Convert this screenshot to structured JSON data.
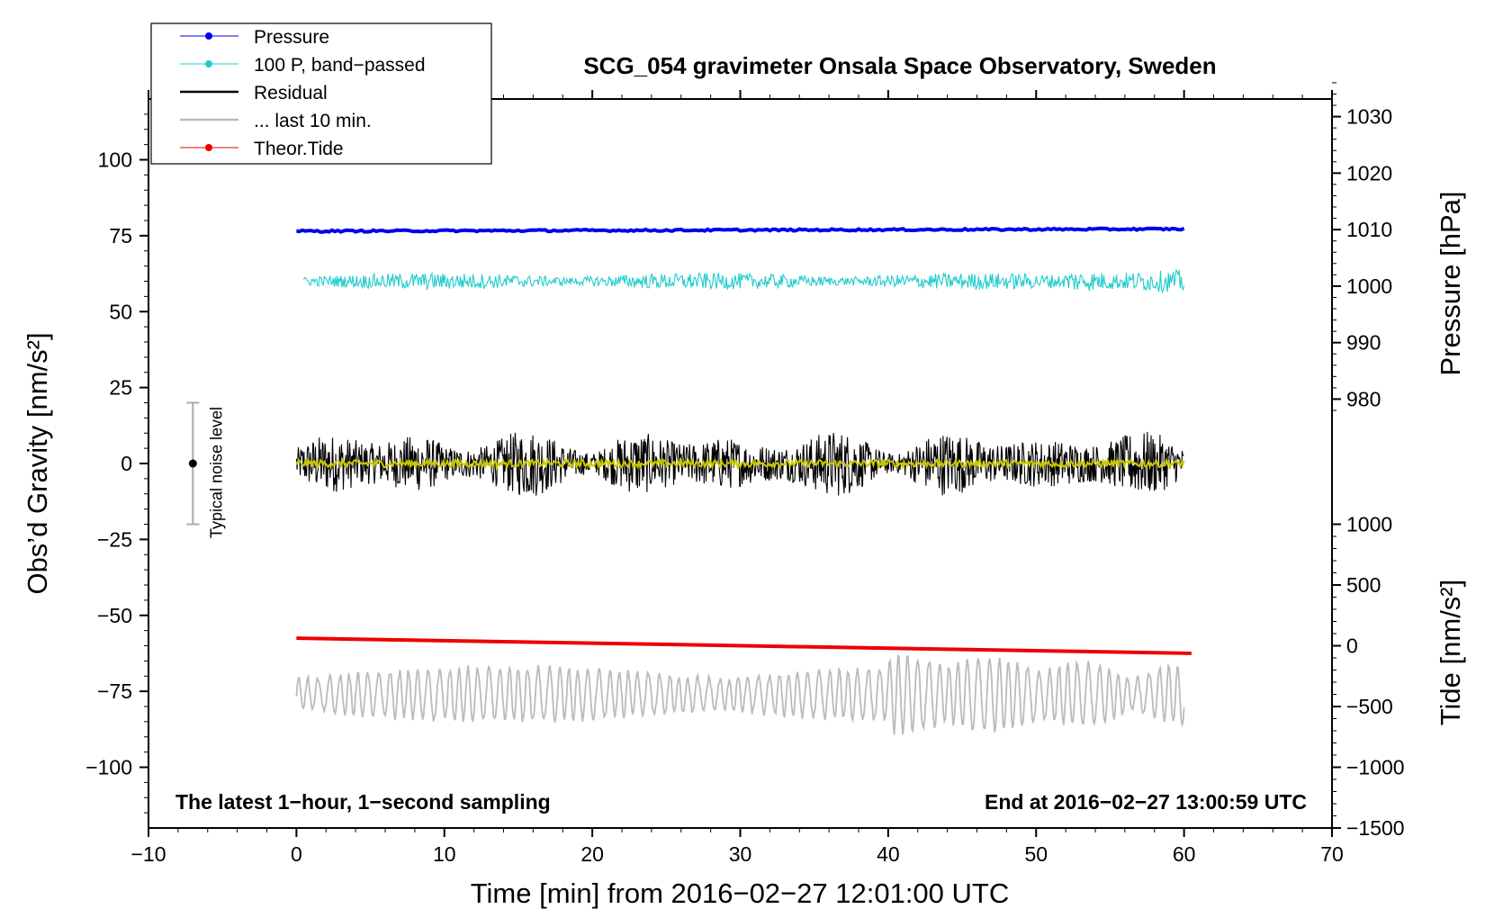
{
  "chart_data": {
    "type": "line",
    "title": "SCG_054 gravimeter Onsala Space Observatory, Sweden",
    "xlabel": "Time [min] from 2016−02−27 12:01:00 UTC",
    "ylabel_left": "Obs’d Gravity [nm/s²]",
    "ylabel_right_top": "Pressure [hPa]",
    "ylabel_right_bottom": "Tide [nm/s²]",
    "xlim": [
      -10,
      70
    ],
    "ylim": [
      -120,
      120
    ],
    "x_ticks": [
      "−10",
      "0",
      "10",
      "20",
      "30",
      "40",
      "50",
      "60",
      "70"
    ],
    "y_ticks_left": [
      "100",
      "75",
      "50",
      "25",
      "0",
      "−25",
      "−50",
      "−75",
      "−100"
    ],
    "y_ticks_pressure": [
      "1030",
      "1020",
      "1010",
      "1000",
      "990",
      "980"
    ],
    "y_ticks_tide": [
      "1000",
      "500",
      "0",
      "−500",
      "−1000",
      "−1500"
    ],
    "pressure_axis": {
      "ref_value": 1010,
      "ref_gravity": 77,
      "gravity_per_unit": 1.86
    },
    "tide_axis": {
      "ref_value": 0,
      "ref_gravity": -60,
      "gravity_per_unit": 0.04
    },
    "series": [
      {
        "name": "Pressure",
        "color": "#0000ee",
        "kind": "linemarker",
        "x_start": 0,
        "x_end": 60,
        "y_start": 76.5,
        "y_end": 77.2,
        "amplitude": 0.3
      },
      {
        "name": "100 P, band−passed",
        "color": "#22cccc",
        "kind": "linemarker",
        "x_start": 0.5,
        "x_end": 60,
        "y_center": 60,
        "amplitude": 2.5
      },
      {
        "name": "Residual",
        "color": "#000000",
        "kind": "line",
        "x_start": 0,
        "x_end": 60,
        "y_center": 0,
        "amplitude": 9
      },
      {
        "name": "... last 10 min.",
        "color": "#bbbbbb",
        "kind": "line",
        "x_start": 0,
        "x_end": 60,
        "y_center": -76,
        "amplitude": 11
      },
      {
        "name": "Theor.Tide",
        "color": "#ee0000",
        "kind": "linemarker",
        "x_start": 0,
        "x_end": 60.5,
        "y_start": -57.5,
        "y_end": -62.5
      }
    ],
    "smoothed_residual": {
      "color": "#c8c800",
      "y_center": 0,
      "amplitude": 1.2
    },
    "noise_level": {
      "label": "Typical noise level",
      "x": -7,
      "y": 0,
      "half_range": 20
    },
    "annotation_left": "The latest 1−hour, 1−second sampling",
    "annotation_right": "End at 2016−02−27 13:00:59 UTC"
  }
}
